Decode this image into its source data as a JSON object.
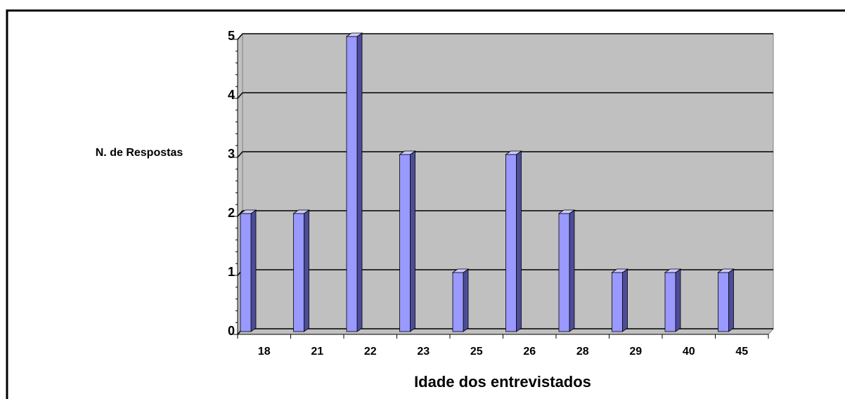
{
  "chart_data": {
    "type": "bar",
    "categories": [
      "18",
      "21",
      "22",
      "23",
      "25",
      "26",
      "28",
      "29",
      "40",
      "45"
    ],
    "values": [
      2,
      2,
      5,
      3,
      1,
      3,
      2,
      1,
      1,
      1
    ],
    "color": "#9999ff",
    "ylim": [
      0,
      5
    ],
    "yticks": [
      0,
      1,
      2,
      3,
      4,
      5
    ],
    "grid": true,
    "ylabel": "N. de Respostas",
    "xlabel": "Idade dos entrevistados"
  }
}
